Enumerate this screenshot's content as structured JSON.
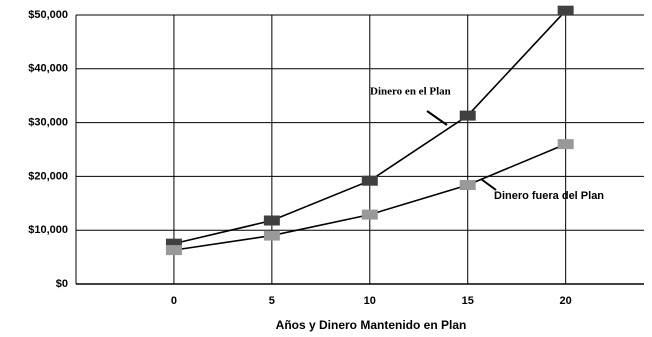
{
  "chart_data": {
    "type": "line",
    "x_label": "Años y Dinero Mantenido en Plan",
    "x": [
      0,
      5,
      10,
      15,
      20
    ],
    "xlim": [
      -5,
      24
    ],
    "xticks": [
      0,
      5,
      10,
      15,
      20
    ],
    "ylim": [
      0,
      50000
    ],
    "yticks": [
      {
        "value": 0,
        "label": "$0"
      },
      {
        "value": 10000,
        "label": "$10,000"
      },
      {
        "value": 20000,
        "label": "$20,000"
      },
      {
        "value": 30000,
        "label": "$30,000"
      },
      {
        "value": 40000,
        "label": "$40,000"
      },
      {
        "value": 50000,
        "label": "$50,000"
      }
    ],
    "grid": true,
    "series": [
      {
        "name": "Dinero en el Plan",
        "color": "#404040",
        "values": [
          7500,
          11800,
          19200,
          31300,
          50800
        ]
      },
      {
        "name": "Dinero fuera del Plan",
        "color": "#999999",
        "values": [
          6300,
          9000,
          12900,
          18400,
          26000
        ]
      }
    ]
  }
}
